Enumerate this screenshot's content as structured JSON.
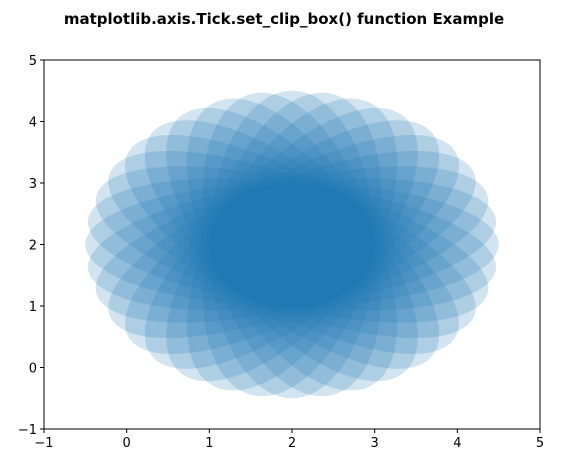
{
  "chart_data": {
    "type": "scatter",
    "title": "matplotlib.axis.Tick.set_clip_box() function Example",
    "xlabel": "",
    "ylabel": "",
    "xlim": [
      -1,
      5
    ],
    "ylim": [
      -1,
      5
    ],
    "xticks": [
      -1,
      0,
      1,
      2,
      3,
      4,
      5
    ],
    "yticks": [
      -1,
      0,
      1,
      2,
      3,
      4,
      5
    ],
    "xtick_labels": [
      "−1",
      "0",
      "1",
      "2",
      "3",
      "4",
      "5"
    ],
    "ytick_labels": [
      "−1",
      "0",
      "1",
      "2",
      "3",
      "4",
      "5"
    ],
    "grid": false,
    "series": [
      {
        "marker": "ellipse",
        "color": "#1f77b4",
        "alpha": 0.2,
        "center": [
          2,
          2
        ],
        "width": 5,
        "height": 2,
        "angles_deg": [
          0,
          10,
          20,
          30,
          40,
          50,
          60,
          70,
          80,
          90,
          100,
          110,
          120,
          130,
          140,
          150,
          160,
          170
        ]
      }
    ]
  }
}
